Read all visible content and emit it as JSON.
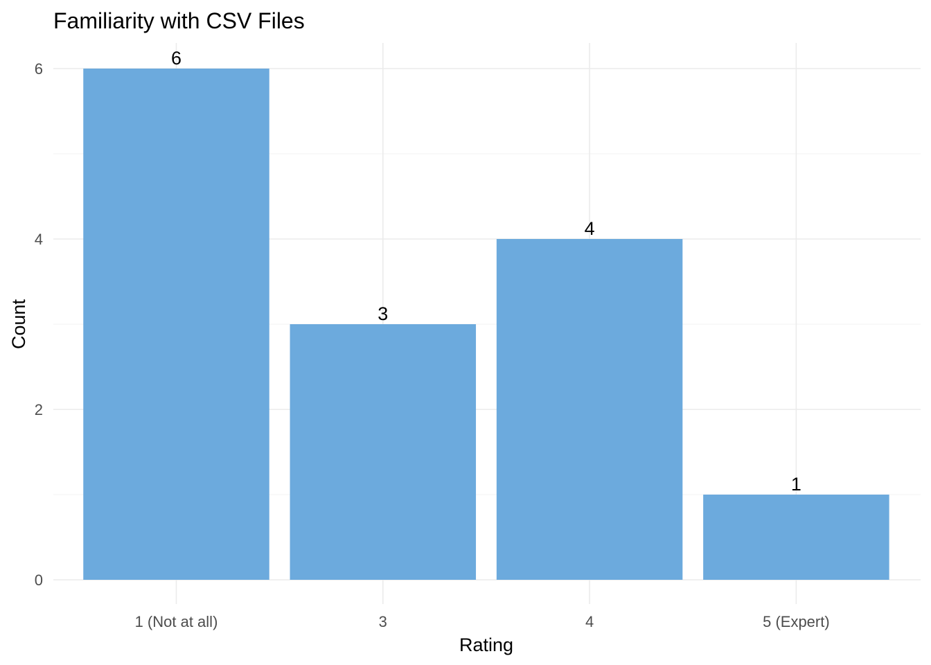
{
  "chart_data": {
    "type": "bar",
    "title": "Familiarity with CSV Files",
    "xlabel": "Rating",
    "ylabel": "Count",
    "categories": [
      "1 (Not at all)",
      "3",
      "4",
      "5 (Expert)"
    ],
    "values": [
      6,
      3,
      4,
      1
    ],
    "ylim": [
      0,
      6.3
    ],
    "yticks": [
      0,
      2,
      4,
      6
    ],
    "grid": true,
    "legend": "none",
    "bar_color": "#6caadd"
  }
}
